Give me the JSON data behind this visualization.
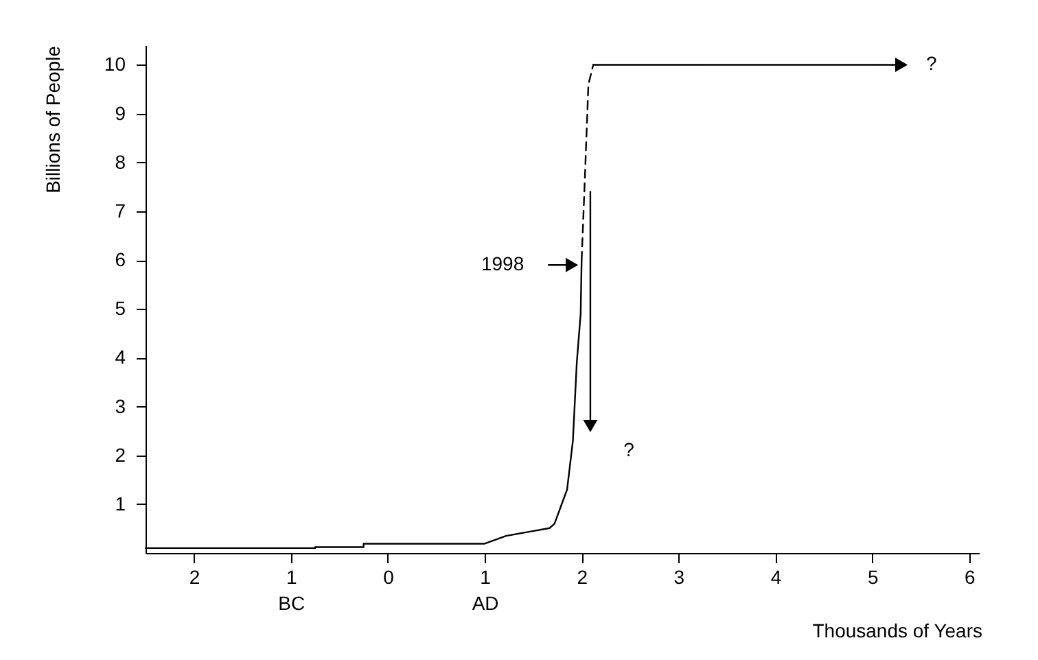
{
  "chart_data": {
    "type": "line",
    "xlabel": "Thousands of Years",
    "ylabel": "Billions of People",
    "xlim": [
      -2.5,
      6.1
    ],
    "xticks": [
      {
        "value": -2,
        "label": "2"
      },
      {
        "value": -1,
        "label": "1\nBC"
      },
      0,
      {
        "value": 1,
        "label": "1\nAD"
      },
      2,
      3,
      4,
      5,
      6
    ],
    "ylim": [
      0,
      10.4
    ],
    "yticks": [
      1,
      2,
      3,
      4,
      5,
      6,
      7,
      8,
      9,
      10
    ],
    "grid": false,
    "series": [
      {
        "color": "#000000",
        "line_style": "solid",
        "x": [
          -2.5,
          -0.75,
          -0.75,
          -0.25,
          -0.25,
          1.0,
          1.22,
          1.67,
          1.72,
          1.85,
          1.91,
          1.95,
          1.99,
          2.0
        ],
        "values": [
          0.1,
          0.1,
          0.12,
          0.12,
          0.19,
          0.19,
          0.35,
          0.51,
          0.6,
          1.3,
          2.3,
          3.9,
          4.9,
          6.0
        ]
      },
      {
        "color": "#000000",
        "line_style": "dashed",
        "x": [
          2.0,
          2.03,
          2.07,
          2.12
        ],
        "values": [
          6.0,
          7.5,
          9.6,
          10.0
        ]
      },
      {
        "color": "#000000",
        "line_style": "solid",
        "marker": "triangle",
        "x": [
          2.12,
          5.3
        ],
        "values": [
          10.0,
          10.0
        ]
      },
      {
        "color": "#000000",
        "line_style": "solid",
        "marker": "triangle",
        "x": [
          2.09,
          2.09
        ],
        "values": [
          7.4,
          2.6
        ]
      },
      {
        "color": "#000000",
        "line_style": "solid",
        "marker": "triangle",
        "x": [
          1.66,
          1.9
        ],
        "values": [
          5.9,
          5.9
        ]
      }
    ],
    "annotations": [
      "?",
      "?",
      "1998"
    ]
  }
}
